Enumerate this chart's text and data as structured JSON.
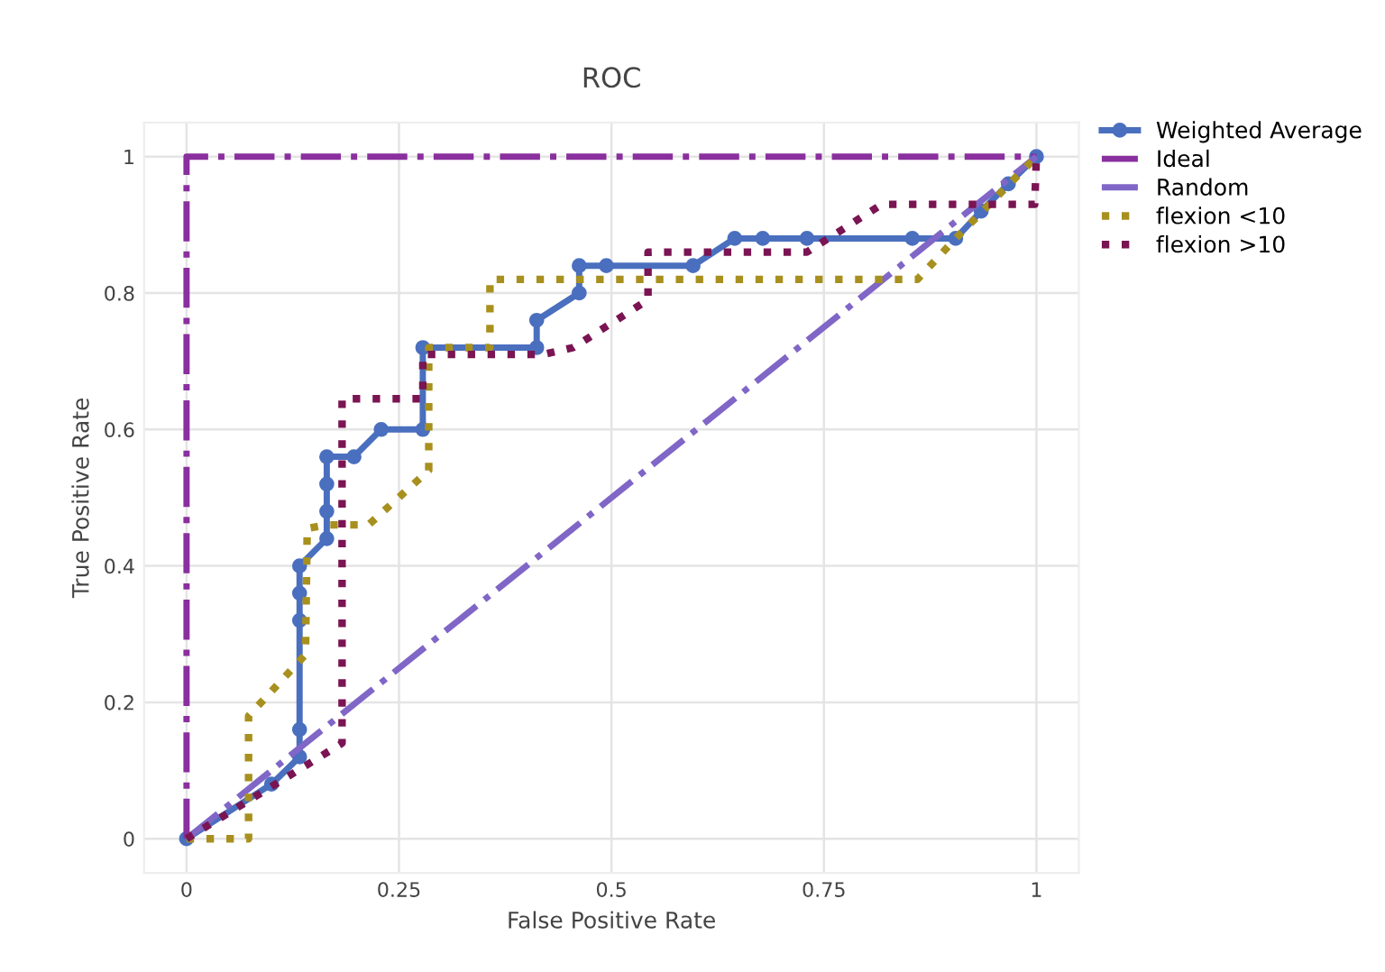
{
  "chart_data": {
    "type": "line",
    "title": "ROC",
    "xlabel": "False Positive Rate",
    "ylabel": "True Positive Rate",
    "xlim": [
      -0.05,
      1.05
    ],
    "ylim": [
      -0.05,
      1.05
    ],
    "xticks": [
      0,
      0.25,
      0.5,
      0.75,
      1
    ],
    "yticks": [
      0,
      0.2,
      0.4,
      0.6,
      0.8,
      1
    ],
    "grid": true,
    "legend": "top right",
    "series": [
      {
        "name": "Weighted Average",
        "color": "#4a6fbf",
        "marker": "circle",
        "line_style": "solid",
        "x": [
          0,
          0.1,
          0.133,
          0.133,
          0.133,
          0.133,
          0.133,
          0.165,
          0.165,
          0.165,
          0.165,
          0.197,
          0.229,
          0.278,
          0.278,
          0.412,
          0.412,
          0.462,
          0.462,
          0.494,
          0.596,
          0.645,
          0.678,
          0.73,
          0.854,
          0.905,
          0.935,
          0.967,
          1
        ],
        "values": [
          0,
          0.08,
          0.12,
          0.16,
          0.32,
          0.36,
          0.4,
          0.44,
          0.48,
          0.52,
          0.56,
          0.56,
          0.6,
          0.6,
          0.72,
          0.72,
          0.76,
          0.8,
          0.84,
          0.84,
          0.84,
          0.88,
          0.88,
          0.88,
          0.88,
          0.88,
          0.92,
          0.96,
          1
        ]
      },
      {
        "name": "Ideal",
        "color": "#8a2f9e",
        "marker": "none",
        "line_style": "dashdot",
        "x": [
          0,
          0,
          1
        ],
        "values": [
          0,
          1,
          1
        ]
      },
      {
        "name": "Random",
        "color": "#8066c6",
        "marker": "none",
        "line_style": "dashdot",
        "x": [
          0,
          1
        ],
        "values": [
          0,
          1
        ]
      },
      {
        "name": "flexion <10",
        "color": "#a8901e",
        "marker": "none",
        "line_style": "dotted",
        "x": [
          0,
          0.073,
          0.073,
          0.14,
          0.142,
          0.165,
          0.214,
          0.285,
          0.285,
          0.357,
          0.357,
          0.86,
          0.905,
          1
        ],
        "values": [
          0,
          0,
          0.18,
          0.27,
          0.455,
          0.46,
          0.46,
          0.54,
          0.72,
          0.72,
          0.82,
          0.82,
          0.88,
          1
        ]
      },
      {
        "name": "flexion >10",
        "color": "#7a1452",
        "marker": "none",
        "line_style": "dotted",
        "x": [
          0,
          0.183,
          0.183,
          0.278,
          0.278,
          0.42,
          0.455,
          0.543,
          0.543,
          0.73,
          0.818,
          0.998,
          1
        ],
        "values": [
          0,
          0.14,
          0.645,
          0.645,
          0.71,
          0.71,
          0.72,
          0.79,
          0.86,
          0.86,
          0.93,
          0.93,
          1
        ]
      }
    ]
  }
}
